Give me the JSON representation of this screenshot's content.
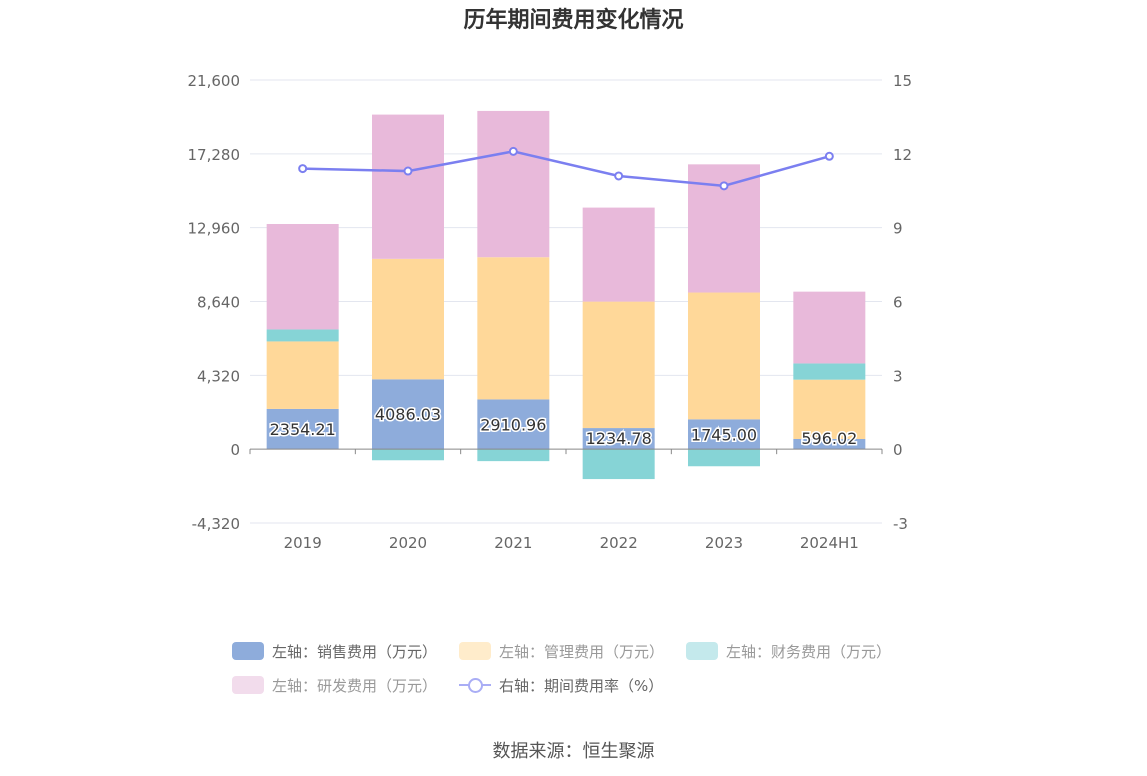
{
  "title": "历年期间费用变化情况",
  "source": "数据来源：恒生聚源",
  "legend": [
    {
      "label": "左轴：销售费用（万元）",
      "color": "#8eacdb",
      "kind": "bar"
    },
    {
      "label": "左轴：管理费用（万元）",
      "color": "#ffeccb",
      "kind": "bar"
    },
    {
      "label": "左轴：财务费用（万元）",
      "color": "#c4e9ec",
      "kind": "bar"
    },
    {
      "label": "左轴：研发费用（万元）",
      "color": "#f2dcec",
      "kind": "bar"
    },
    {
      "label": "右轴：期间费用率（%）",
      "color": "#a9adf5",
      "kind": "line"
    }
  ],
  "chart_data": {
    "type": "bar",
    "stacked": true,
    "categories": [
      "2019",
      "2020",
      "2021",
      "2022",
      "2023",
      "2024H1"
    ],
    "y_left": {
      "min": -4320,
      "max": 21600,
      "ticks": [
        "-4,320",
        "0",
        "4,320",
        "8,640",
        "12,960",
        "17,280",
        "21,600"
      ],
      "tick_values": [
        -4320,
        0,
        4320,
        8640,
        12960,
        17280,
        21600
      ]
    },
    "y_right": {
      "min": -3,
      "max": 15,
      "ticks": [
        "-3",
        "0",
        "3",
        "6",
        "9",
        "12",
        "15"
      ],
      "tick_values": [
        -3,
        0,
        3,
        6,
        9,
        12,
        15
      ]
    },
    "grid": true,
    "series": [
      {
        "name": "左轴：销售费用（万元）",
        "axis": "left",
        "type": "bar",
        "color": "#8eacdb",
        "values": [
          2354.21,
          4086.03,
          2910.96,
          1234.78,
          1745.0,
          596.02
        ],
        "labels": [
          "2354.21",
          "4086.03",
          "2910.96",
          "1234.78",
          "1745.00",
          "596.02"
        ]
      },
      {
        "name": "左轴：管理费用（万元）",
        "axis": "left",
        "type": "bar",
        "color": "#ffd899",
        "values": [
          3950,
          7050,
          8320,
          7400,
          7420,
          3470
        ]
      },
      {
        "name": "左轴：财务费用（万元）",
        "axis": "left",
        "type": "bar",
        "color": "#86d4d6",
        "values": [
          700,
          -650,
          -700,
          -1750,
          -1000,
          950
        ]
      },
      {
        "name": "左轴：研发费用（万元）",
        "axis": "left",
        "type": "bar",
        "color": "#e8b9da",
        "values": [
          6170,
          8440,
          8560,
          5500,
          7500,
          4200
        ]
      },
      {
        "name": "右轴：期间费用率（%）",
        "axis": "right",
        "type": "line",
        "color": "#7b7ff0",
        "values": [
          11.4,
          11.3,
          12.1,
          11.1,
          10.7,
          11.9
        ]
      }
    ]
  }
}
